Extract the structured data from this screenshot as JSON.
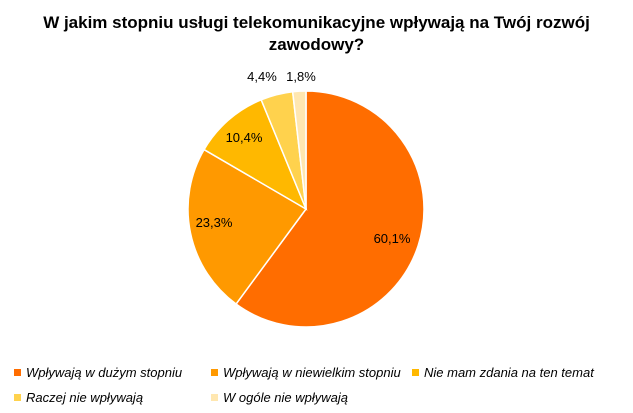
{
  "chart_data": {
    "type": "pie",
    "title": "W jakim stopniu usługi telekomunikacyjne wpływają na Twój rozwój zawodowy?",
    "legend_position": "bottom",
    "slices": [
      {
        "label": "Wpływają w dużym stopniu",
        "value": 60.1,
        "value_label": "60,1%",
        "color": "#FF6D00"
      },
      {
        "label": "Wpływają w niewielkim stopniu",
        "value": 23.3,
        "value_label": "23,3%",
        "color": "#FF9900"
      },
      {
        "label": "Nie mam zdania na ten temat",
        "value": 10.4,
        "value_label": "10,4%",
        "color": "#FFB800"
      },
      {
        "label": "Raczej nie wpływają",
        "value": 4.4,
        "value_label": "4,4%",
        "color": "#FFD24D"
      },
      {
        "label": "W ogóle nie wpływają",
        "value": 1.8,
        "value_label": "1,8%",
        "color": "#FFE7B0"
      }
    ]
  }
}
